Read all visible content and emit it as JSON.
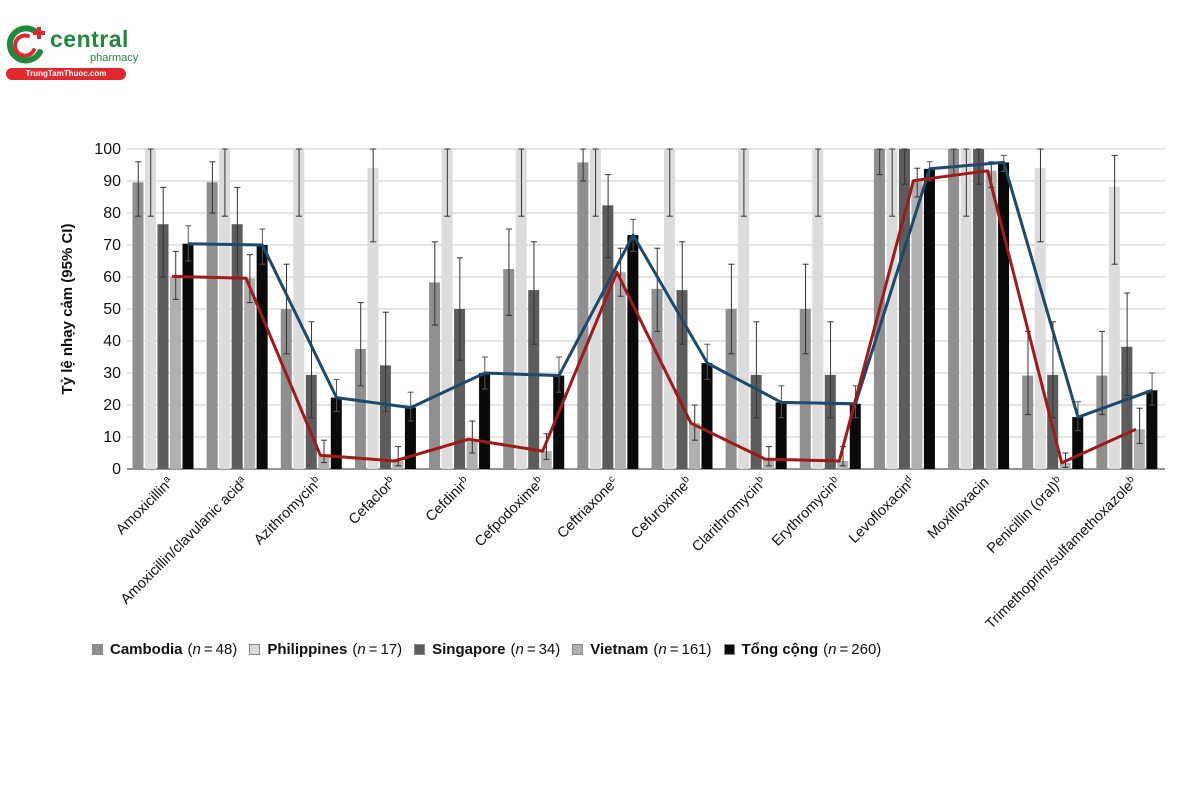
{
  "logo": {
    "brand": "central",
    "sub": "pharmacy",
    "url": "TrungTamThuoc.com"
  },
  "chart_data": {
    "type": "bar",
    "ylabel": "Tỷ lệ nhạy cảm (95% CI)",
    "ylim": [
      0,
      100
    ],
    "yticks": [
      0,
      10,
      20,
      30,
      40,
      50,
      60,
      70,
      80,
      90,
      100
    ],
    "grid": true,
    "categories": [
      {
        "name": "Amoxicillin",
        "sup": "a"
      },
      {
        "name": "Amoxicillin/clavulanic acid",
        "sup": "a"
      },
      {
        "name": "Azithromycin",
        "sup": "b"
      },
      {
        "name": "Cefaclor",
        "sup": "b"
      },
      {
        "name": "Cefdinir",
        "sup": "b"
      },
      {
        "name": "Cefpodoxime",
        "sup": "b"
      },
      {
        "name": "Ceftriaxone",
        "sup": "c"
      },
      {
        "name": "Cefuroxime",
        "sup": "b"
      },
      {
        "name": "Clarithromycin",
        "sup": "b"
      },
      {
        "name": "Erythromycin",
        "sup": "b"
      },
      {
        "name": "Levofloxacin",
        "sup": "d"
      },
      {
        "name": "Moxifloxacin",
        "sup": ""
      },
      {
        "name": "Penicillin (oral)",
        "sup": "b"
      },
      {
        "name": "Trimethoprim/sulfamethoxazole",
        "sup": "b"
      }
    ],
    "series": [
      {
        "name": "Cambodia",
        "n": "48",
        "color": "#8f8f8f",
        "values": [
          89.6,
          89.6,
          50,
          37.5,
          58.3,
          62.5,
          95.8,
          56.3,
          50,
          50,
          100,
          100,
          29.2,
          29.2
        ],
        "lower": [
          79,
          80,
          36,
          26,
          45,
          48,
          90,
          43,
          36,
          36,
          92,
          92,
          17,
          17
        ],
        "upper": [
          96,
          96,
          64,
          52,
          71,
          75,
          100,
          69,
          64,
          64,
          100,
          100,
          43,
          43
        ]
      },
      {
        "name": "Philippines",
        "n": "17",
        "color": "#dcdcdc",
        "values": [
          100,
          100,
          100,
          94.1,
          100,
          100,
          100,
          100,
          100,
          100,
          100,
          100,
          94.1,
          88.2
        ],
        "lower": [
          79,
          79,
          79,
          71,
          79,
          79,
          79,
          79,
          79,
          79,
          79,
          79,
          71,
          64
        ],
        "upper": [
          100,
          100,
          100,
          100,
          100,
          100,
          100,
          100,
          100,
          100,
          100,
          100,
          100,
          98
        ]
      },
      {
        "name": "Singapore",
        "n": "34",
        "color": "#5c5c5c",
        "values": [
          76.5,
          76.5,
          29.4,
          32.4,
          50,
          55.9,
          82.4,
          55.9,
          29.4,
          29.4,
          100,
          100,
          29.4,
          38.2
        ],
        "lower": [
          60,
          60,
          16,
          18,
          34,
          39,
          66,
          39,
          16,
          16,
          89,
          89,
          16,
          23
        ],
        "upper": [
          88,
          88,
          46,
          49,
          66,
          71,
          92,
          71,
          46,
          46,
          100,
          100,
          46,
          55
        ]
      },
      {
        "name": "Vietnam",
        "n": "161",
        "color": "#b0b0b0",
        "values": [
          60.2,
          59.6,
          4.3,
          2.5,
          9.3,
          5.6,
          61.5,
          14.3,
          3.1,
          2.5,
          90.1,
          93.2,
          1.9,
          12.4
        ],
        "lower": [
          53,
          52,
          2,
          1,
          5,
          3,
          54,
          9,
          1,
          1,
          85,
          88,
          0.5,
          8
        ],
        "upper": [
          68,
          67,
          9,
          7,
          15,
          11,
          69,
          20,
          7,
          7,
          94,
          96,
          5,
          19
        ]
      },
      {
        "name": "Tổng cộng",
        "n": "260",
        "color": "#0a0a0a",
        "values": [
          70.4,
          70,
          22.3,
          19.2,
          30,
          29.2,
          73.1,
          33.1,
          20.8,
          20.4,
          93.8,
          95.8,
          16.2,
          24.6
        ],
        "lower": [
          65,
          64,
          18,
          15,
          25,
          24,
          68,
          28,
          16,
          16,
          90,
          93,
          12,
          20
        ],
        "upper": [
          76,
          75,
          28,
          24,
          35,
          35,
          78,
          39,
          26,
          26,
          96,
          98,
          21,
          30
        ]
      }
    ],
    "lines": [
      {
        "name": "Tổng cộng",
        "color": "#1c4a6e",
        "values": [
          70.4,
          70,
          22.3,
          19.2,
          30,
          29.2,
          73.1,
          33.1,
          20.8,
          20.4,
          93.8,
          95.8,
          16.2,
          24.6
        ]
      },
      {
        "name": "Vietnam",
        "color": "#a01a1a",
        "values": [
          60.2,
          59.6,
          4.3,
          2.5,
          9.3,
          5.6,
          61.5,
          14.3,
          3.1,
          2.5,
          90.1,
          93.2,
          1.9,
          12.4
        ]
      }
    ],
    "legend": {
      "n_prefix": "n",
      "placement": "bottom"
    }
  }
}
